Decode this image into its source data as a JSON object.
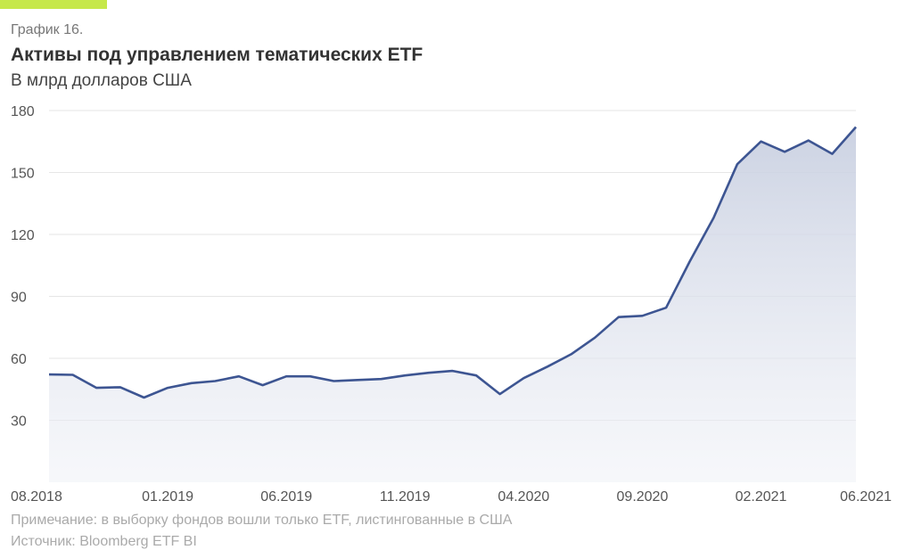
{
  "header": {
    "label": "График 16.",
    "title": "Активы под управлением тематических ETF",
    "subtitle": "В млрд долларов США"
  },
  "footer": {
    "note": "Примечание: в выборку фондов вошли только ETF, листингованные в США",
    "source": "Источник: Bloomberg ETF BI"
  },
  "colors": {
    "line": "#3d5592",
    "accent": "#c6e84a",
    "fill": "#d3d9e6"
  },
  "chart_data": {
    "type": "area",
    "title": "Активы под управлением тематических ETF",
    "ylabel": "В млрд долларов США",
    "xlabel": "",
    "ylim": [
      0,
      180
    ],
    "yticks": [
      30,
      60,
      90,
      120,
      150,
      180
    ],
    "x": [
      "08.2018",
      "09.2018",
      "10.2018",
      "11.2018",
      "12.2018",
      "01.2019",
      "02.2019",
      "03.2019",
      "04.2019",
      "05.2019",
      "06.2019",
      "07.2019",
      "08.2019",
      "09.2019",
      "10.2019",
      "11.2019",
      "12.2019",
      "01.2020",
      "02.2020",
      "03.2020",
      "04.2020",
      "05.2020",
      "06.2020",
      "07.2020",
      "08.2020",
      "09.2020",
      "10.2020",
      "11.2020",
      "12.2020",
      "01.2021",
      "02.2021",
      "03.2021",
      "04.2021",
      "05.2021",
      "06.2021"
    ],
    "xtick_labels": [
      "08.2018",
      "01.2019",
      "06.2019",
      "11.2019",
      "04.2020",
      "09.2020",
      "02.2021",
      "06.2021"
    ],
    "values": [
      52.2,
      52,
      45.7,
      46,
      41,
      45.7,
      48,
      49,
      51.3,
      47,
      51.3,
      51.3,
      49,
      49.5,
      50,
      51.7,
      53,
      53.9,
      51.7,
      42.7,
      50.4,
      56,
      62,
      70,
      80,
      80.6,
      84.5,
      107,
      128,
      154,
      165,
      160,
      165.5,
      159,
      172
    ],
    "grid": true
  }
}
